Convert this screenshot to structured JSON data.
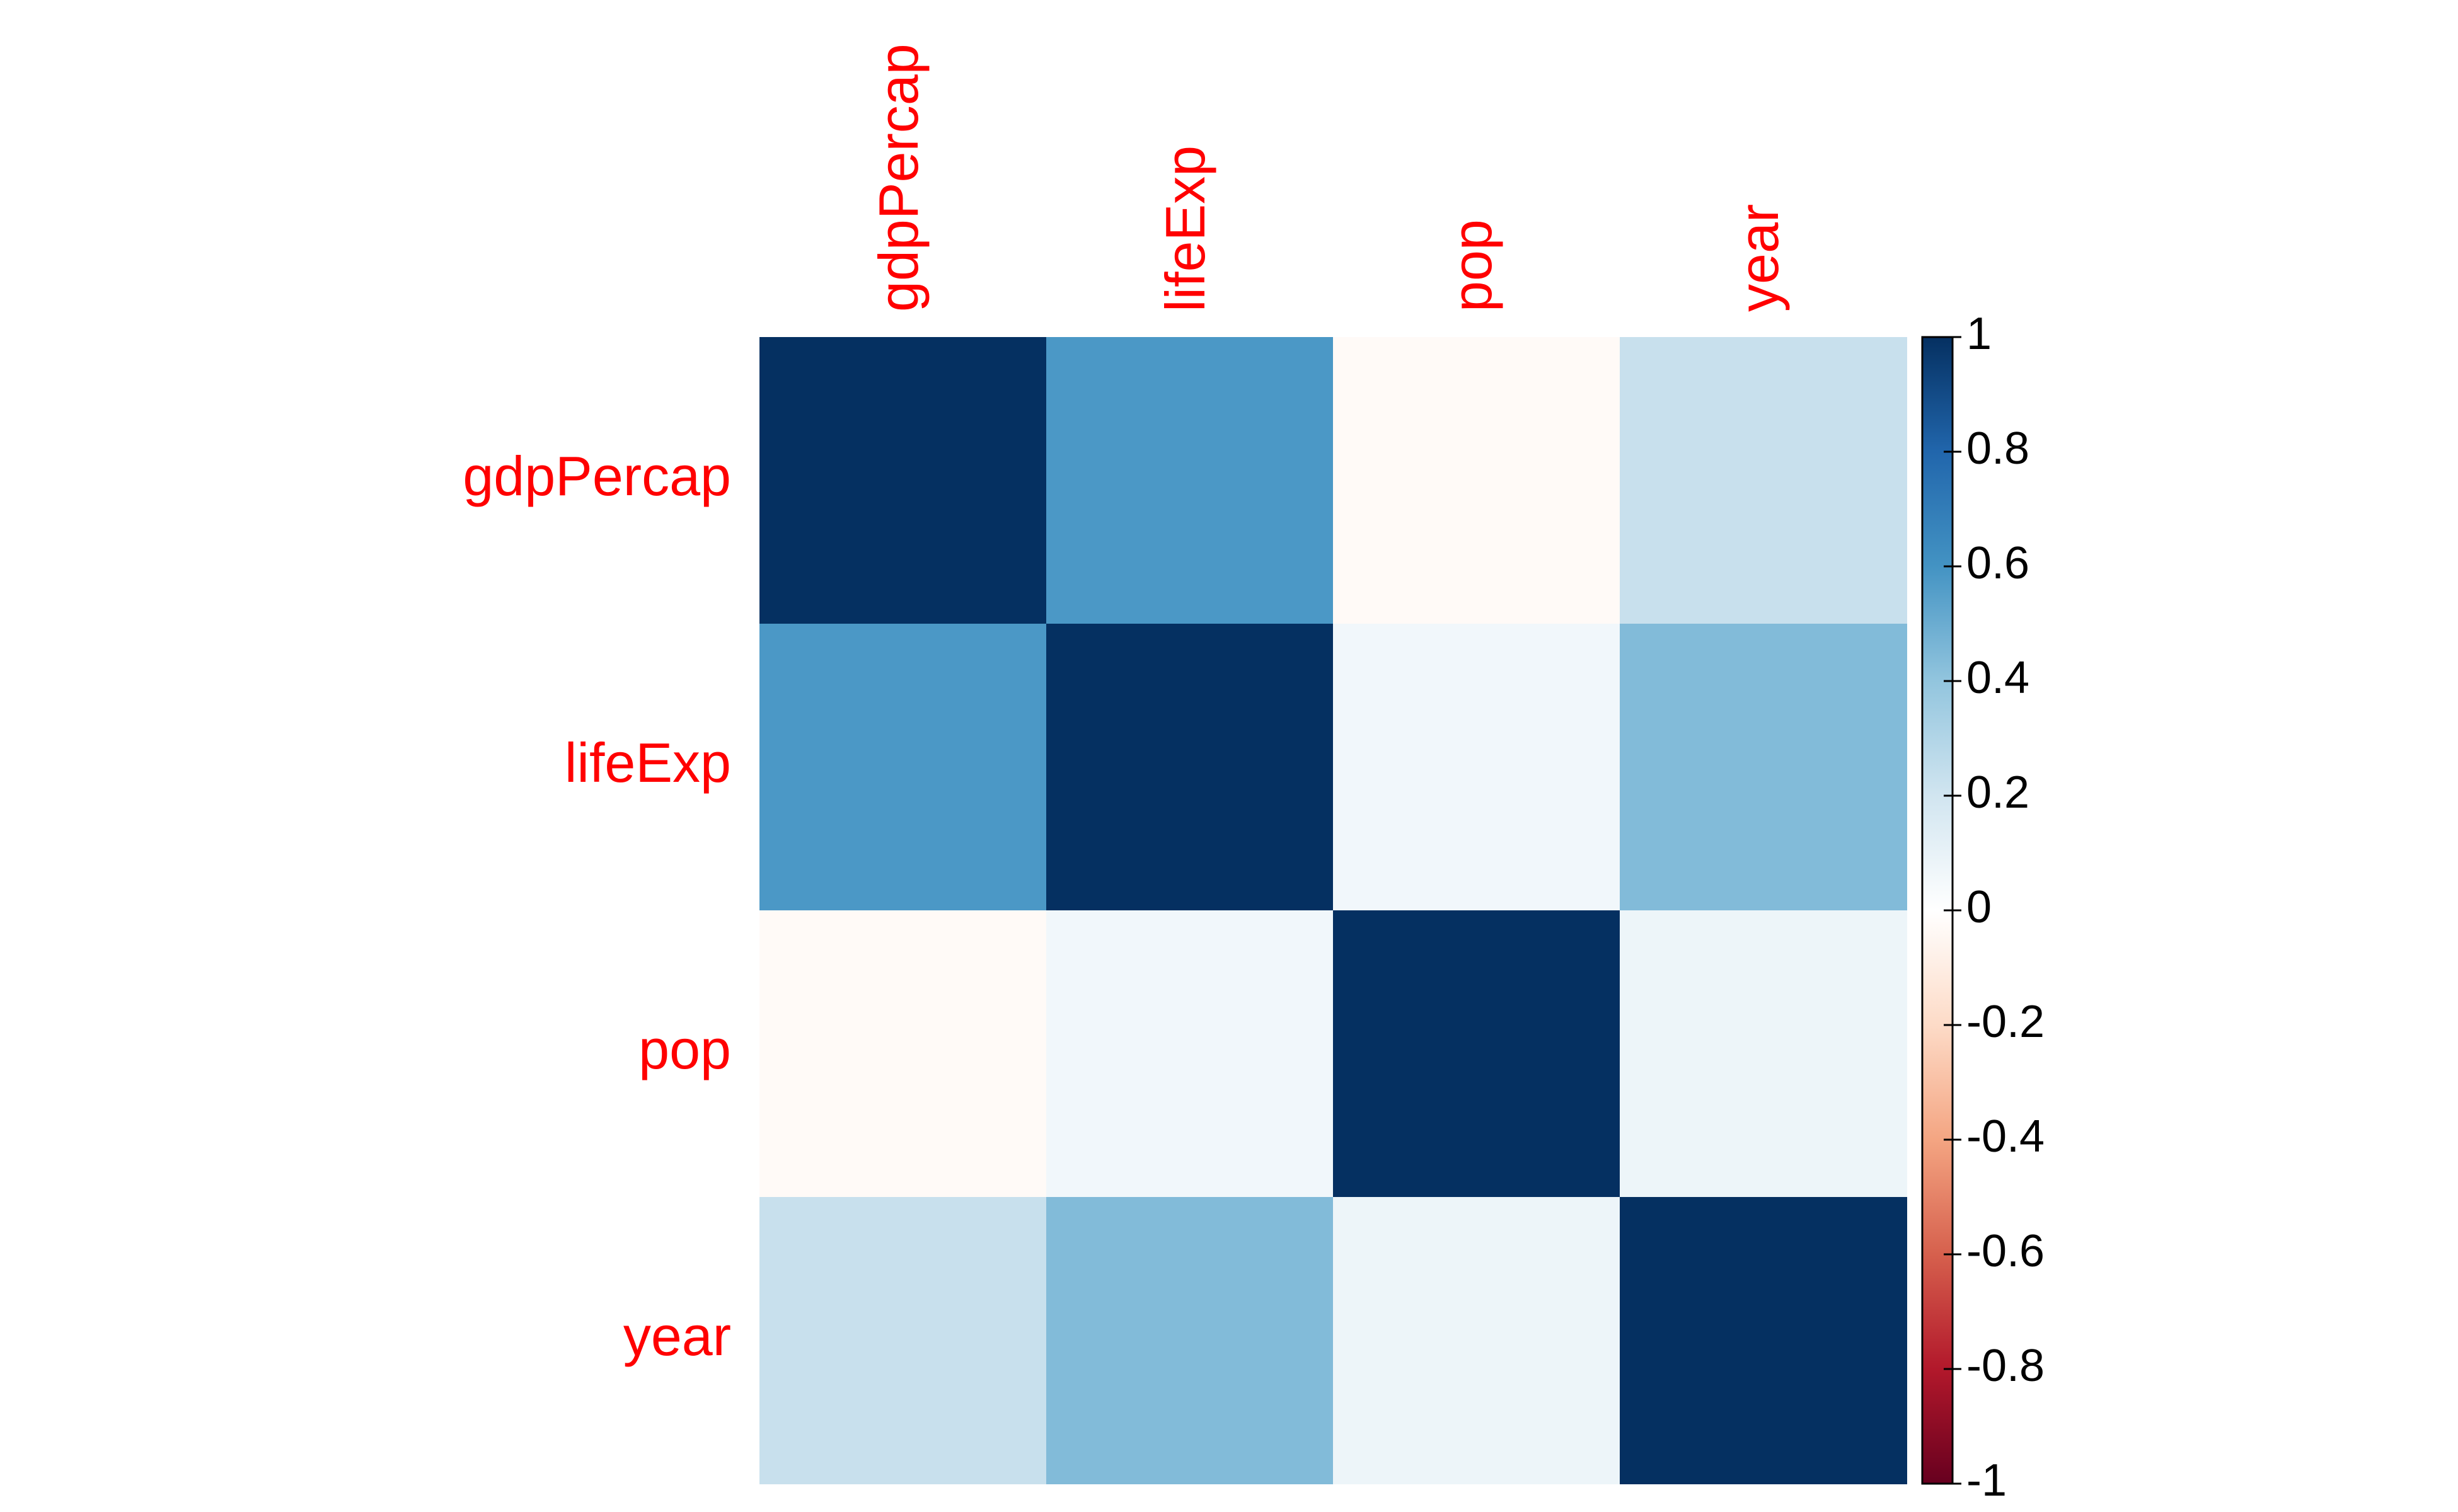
{
  "chart_data": {
    "type": "heatmap",
    "title": "",
    "variables": [
      "gdpPercap",
      "lifeExp",
      "pop",
      "year"
    ],
    "matrix": [
      [
        1.0,
        0.58,
        -0.03,
        0.23
      ],
      [
        0.58,
        1.0,
        0.06,
        0.44
      ],
      [
        -0.03,
        0.06,
        1.0,
        0.08
      ],
      [
        0.23,
        0.44,
        0.08,
        1.0
      ]
    ],
    "colorbar": {
      "range": [
        -1,
        1
      ],
      "ticks": [
        "1",
        "0.8",
        "0.6",
        "0.4",
        "0.2",
        "0",
        "-0.2",
        "-0.4",
        "-0.6",
        "-0.8",
        "-1"
      ]
    },
    "colors": {
      "label": "#ff0000",
      "tick_text": "#000000"
    },
    "legend_position": "right"
  }
}
